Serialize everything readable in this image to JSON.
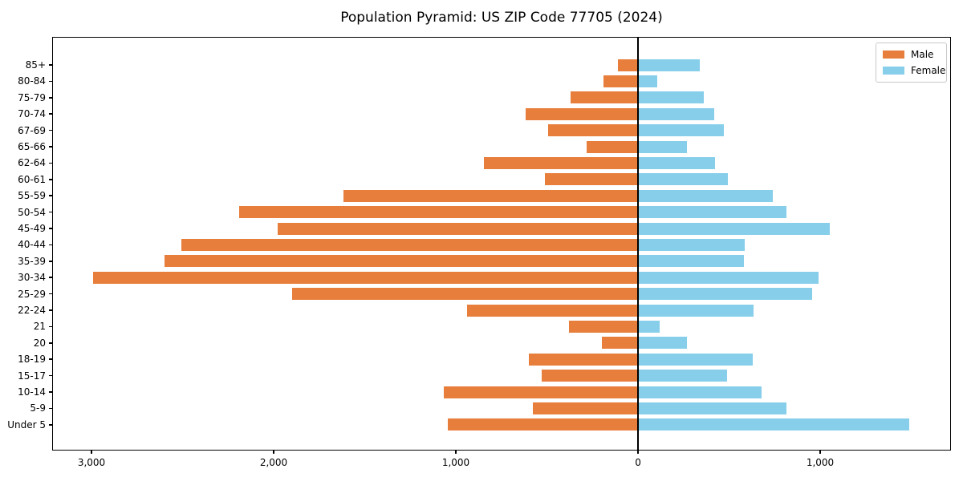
{
  "chart_data": {
    "type": "bar",
    "variant": "population-pyramid",
    "orientation": "horizontal",
    "title": "Population Pyramid: US ZIP Code 77705 (2024)",
    "xlabel": "",
    "ylabel": "",
    "grid": false,
    "legend_position": "upper right",
    "xlim": [
      -3216,
      1718
    ],
    "categories": [
      "85+",
      "80-84",
      "75-79",
      "70-74",
      "67-69",
      "65-66",
      "62-64",
      "60-61",
      "55-59",
      "50-54",
      "45-49",
      "40-44",
      "35-39",
      "30-34",
      "25-29",
      "22-24",
      "21",
      "20",
      "18-19",
      "15-17",
      "10-14",
      "5-9",
      "Under 5"
    ],
    "series": [
      {
        "name": "Male",
        "side": "left",
        "color": "#E77E3C",
        "values": [
          110,
          190,
          370,
          615,
          495,
          280,
          845,
          510,
          1615,
          2190,
          1980,
          2505,
          2600,
          2990,
          1900,
          940,
          380,
          200,
          600,
          530,
          1065,
          575,
          1045
        ]
      },
      {
        "name": "Female",
        "side": "right",
        "color": "#87CEEB",
        "values": [
          340,
          105,
          360,
          420,
          470,
          270,
          425,
          495,
          740,
          815,
          1055,
          585,
          580,
          990,
          955,
          635,
          120,
          270,
          630,
          490,
          680,
          815,
          1490
        ]
      }
    ],
    "x_ticks": [
      {
        "value": -3000,
        "label": "3,000"
      },
      {
        "value": -2000,
        "label": "2,000"
      },
      {
        "value": -1000,
        "label": "1,000"
      },
      {
        "value": 0,
        "label": "0"
      },
      {
        "value": 1000,
        "label": "1,000"
      }
    ],
    "axis_color": "#000000"
  }
}
